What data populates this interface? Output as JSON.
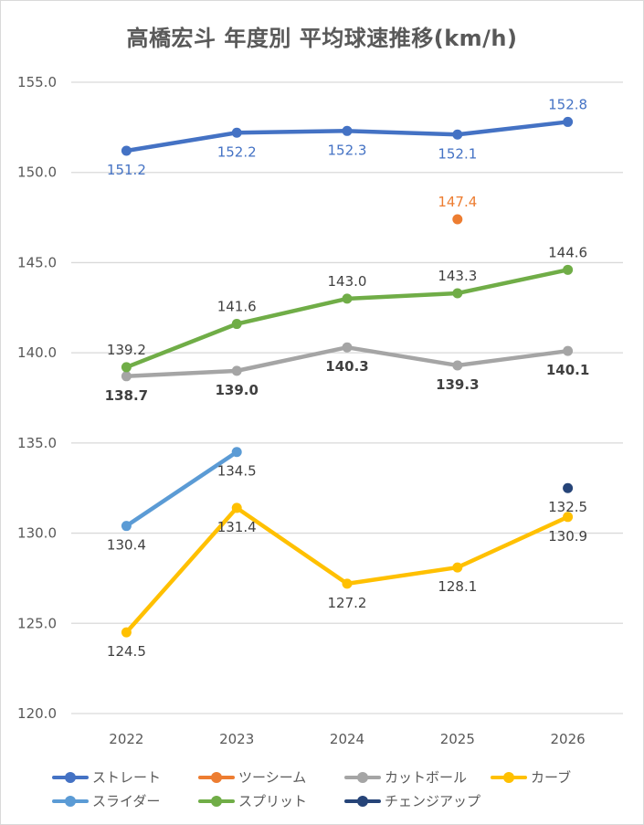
{
  "chart_data": {
    "type": "line",
    "title": "高橋宏斗 年度別 平均球速推移(km/h)",
    "xlabel": "",
    "ylabel": "",
    "categories": [
      "2022",
      "2023",
      "2024",
      "2025",
      "2026"
    ],
    "ylim": [
      120.0,
      155.0
    ],
    "yticks": [
      "120.0",
      "125.0",
      "130.0",
      "135.0",
      "140.0",
      "145.0",
      "150.0",
      "155.0"
    ],
    "grid": true,
    "legend_position": "bottom",
    "series": [
      {
        "name": "ストレート",
        "color": "#4472c4",
        "values": [
          151.2,
          152.2,
          152.3,
          152.1,
          152.8
        ],
        "label_color": "#4472c4",
        "label_bold": false,
        "label_pos": [
          "below",
          "below",
          "below",
          "below",
          "above"
        ]
      },
      {
        "name": "ツーシーム",
        "color": "#ed7d31",
        "values": [
          null,
          null,
          null,
          147.4,
          null
        ],
        "label_color": "#ed7d31",
        "label_bold": false,
        "label_pos": [
          "above",
          "above",
          "above",
          "above",
          "above"
        ]
      },
      {
        "name": "カットボール",
        "color": "#a5a5a5",
        "values": [
          138.7,
          139.0,
          140.3,
          139.3,
          140.1
        ],
        "label_color": "#404040",
        "label_bold": true,
        "label_pos": [
          "below",
          "below",
          "below",
          "below",
          "below"
        ]
      },
      {
        "name": "カーブ",
        "color": "#ffc000",
        "values": [
          124.5,
          131.4,
          127.2,
          128.1,
          130.9
        ],
        "label_color": "#404040",
        "label_bold": false,
        "label_pos": [
          "below",
          "below",
          "below",
          "below",
          "below"
        ]
      },
      {
        "name": "スライダー",
        "color": "#5b9bd5",
        "values": [
          130.4,
          134.5,
          null,
          null,
          null
        ],
        "label_color": "#404040",
        "label_bold": false,
        "label_pos": [
          "below",
          "below",
          "below",
          "below",
          "below"
        ]
      },
      {
        "name": "スプリット",
        "color": "#70ad47",
        "values": [
          139.2,
          141.6,
          143.0,
          143.3,
          144.6
        ],
        "label_color": "#404040",
        "label_bold": false,
        "label_pos": [
          "above",
          "above",
          "above",
          "above",
          "above"
        ]
      },
      {
        "name": "チェンジアップ",
        "color": "#264478",
        "values": [
          null,
          null,
          null,
          null,
          132.5
        ],
        "label_color": "#404040",
        "label_bold": false,
        "label_pos": [
          "below",
          "below",
          "below",
          "below",
          "below"
        ]
      }
    ]
  }
}
